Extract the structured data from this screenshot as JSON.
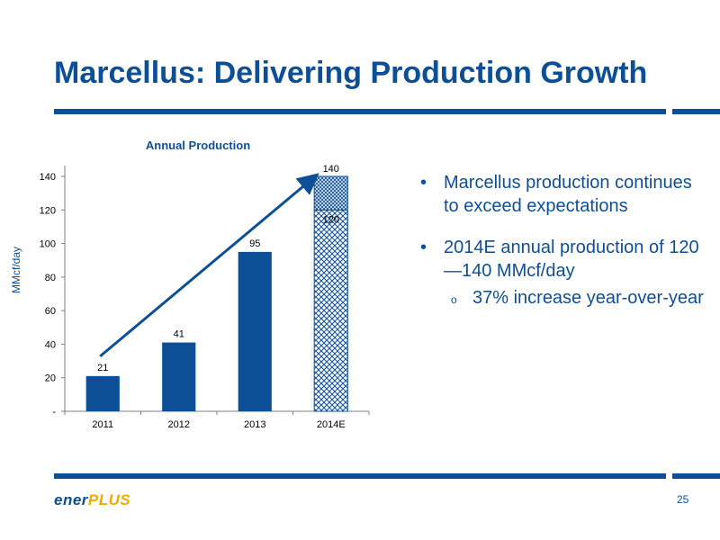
{
  "slide": {
    "title": "Marcellus: Delivering Production Growth",
    "page_number": "25",
    "logo": {
      "part1": "ener",
      "part2": "PLUS"
    }
  },
  "bullets": {
    "b1": "Marcellus production continues to exceed expectations",
    "b2": "2014E annual production of 120—140 MMcf/day",
    "sub1": "37% increase year-over-year",
    "bullet_glyph": "•",
    "sub_glyph": "o"
  },
  "colors": {
    "primary": "#0d4f97",
    "accent": "#f2a900"
  },
  "chart_data": {
    "type": "bar",
    "title": "Annual Production",
    "ylabel": "MMcf/day",
    "xlabel": "",
    "categories": [
      "2011",
      "2012",
      "2013",
      "2014E"
    ],
    "values": [
      21,
      41,
      95,
      120
    ],
    "labels": [
      "21",
      "41",
      "95",
      "120"
    ],
    "range_top": {
      "category": "2014E",
      "value": 140,
      "label": "140"
    },
    "ylim": [
      0,
      140
    ],
    "yticks": [
      0,
      20,
      40,
      60,
      80,
      100,
      120,
      140
    ],
    "ytick_labels": [
      "-",
      "20",
      "40",
      "60",
      "80",
      "100",
      "120",
      "140"
    ],
    "grid": false,
    "legend": "none",
    "trend_arrow": true
  }
}
